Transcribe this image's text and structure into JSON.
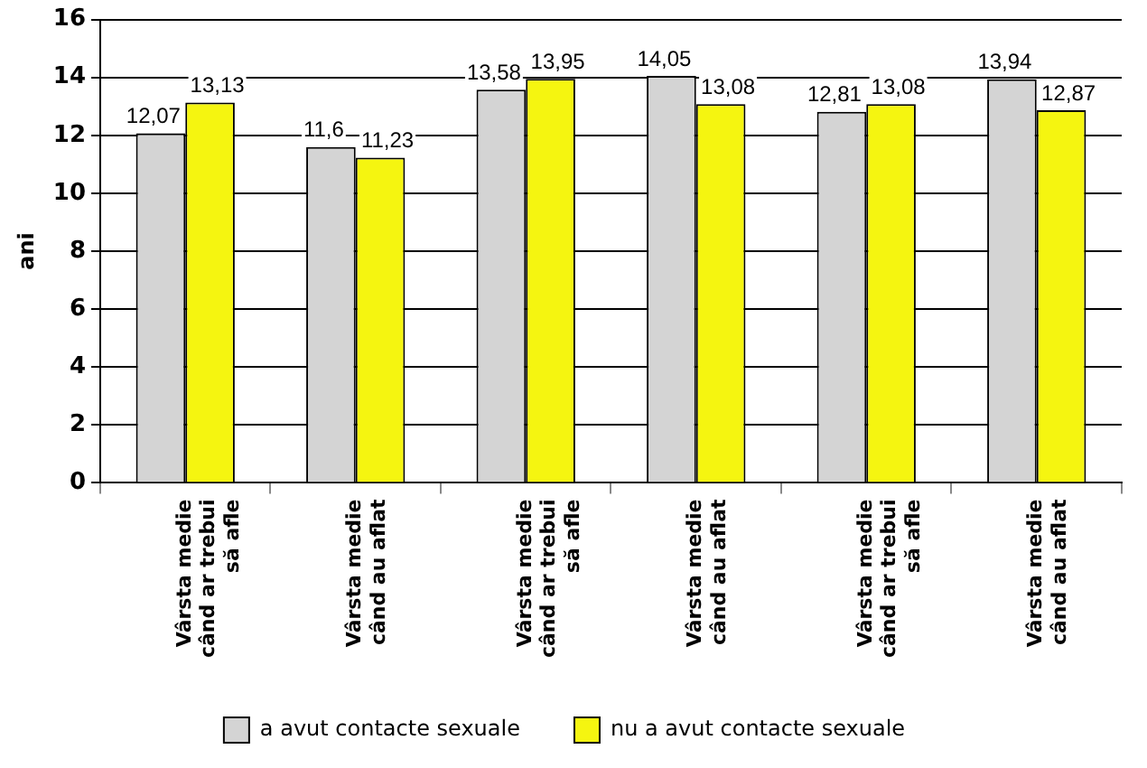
{
  "chart_data": {
    "type": "bar",
    "ylabel": "ani",
    "categories": [
      "Vârsta medie\ncând ar trebui\nsă afle",
      "Vârsta medie\ncând au aflat",
      "Vârsta medie\ncând ar trebui\nsă afle",
      "Vârsta medie\ncând au aflat",
      "Vârsta medie\ncând ar trebui\nsă afle",
      "Vârsta medie\ncând au aflat"
    ],
    "series": [
      {
        "name": "a avut contacte sexuale",
        "color": "#d4d4d4",
        "values": [
          12.07,
          11.6,
          13.58,
          14.05,
          12.81,
          13.94
        ],
        "value_labels": [
          "12,07",
          "11,6",
          "13,58",
          "14,05",
          "12,81",
          "13,94"
        ]
      },
      {
        "name": "nu a avut contacte sexuale",
        "color": "#f5f510",
        "values": [
          13.13,
          11.23,
          13.95,
          13.08,
          13.08,
          12.87
        ],
        "value_labels": [
          "13,13",
          "11,23",
          "13,95",
          "13,08",
          "13,08",
          "12,87"
        ]
      }
    ],
    "ylim": [
      0,
      16
    ],
    "yticks": [
      0,
      2,
      4,
      6,
      8,
      10,
      12,
      14,
      16
    ],
    "grid": "y",
    "legend": "bottom"
  }
}
